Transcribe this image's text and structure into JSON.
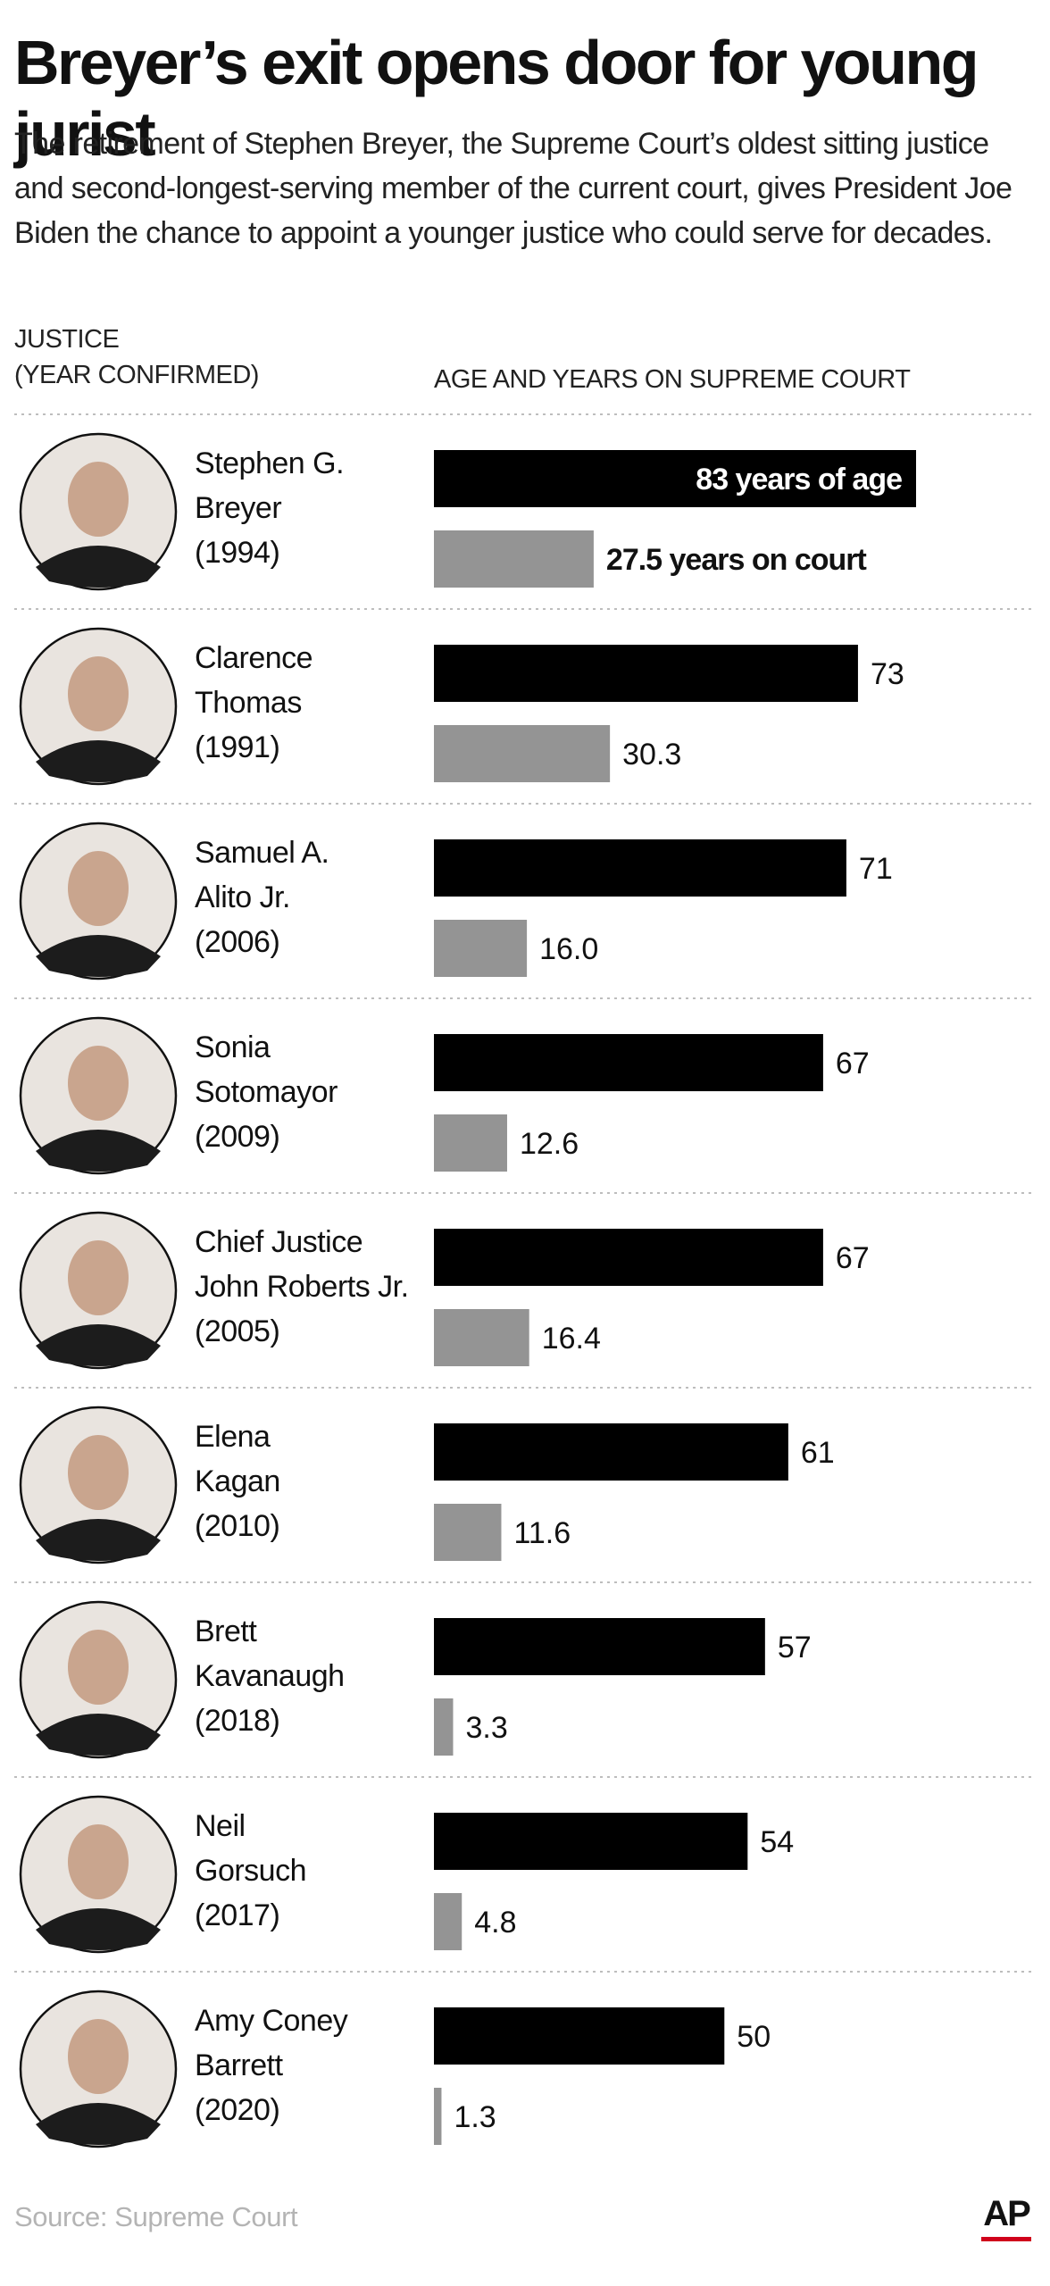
{
  "title": "Breyer’s exit opens door for young jurist",
  "subtitle": "The retirement of Stephen Breyer, the Supreme Court’s oldest sitting justice and second-longest-serving member of the current court, gives President Joe Biden the chance to appoint a younger justice who could serve for decades.",
  "header": {
    "justice_line1": "JUSTICE",
    "justice_line2": "(YEAR CONFIRMED)",
    "age_years": "AGE AND YEARS ON SUPREME COURT"
  },
  "source": "Source: Supreme Court",
  "logo_text": "AP",
  "colors": {
    "age_bar": "#000000",
    "court_bar": "#949494",
    "divider": "#bdbdbd",
    "logo_accent": "#d0021b"
  },
  "icons": [
    "justice-portrait"
  ],
  "chart_data": {
    "type": "bar",
    "orientation": "horizontal",
    "categories": [
      "Stephen G. Breyer (1994)",
      "Clarence Thomas (1991)",
      "Samuel A. Alito Jr. (2006)",
      "Sonia Sotomayor (2009)",
      "Chief Justice John Roberts Jr. (2005)",
      "Elena Kagan (2010)",
      "Brett Kavanaugh (2018)",
      "Neil Gorsuch (2017)",
      "Amy Coney Barrett (2020)"
    ],
    "series": [
      {
        "values": [
          83,
          73,
          71,
          67,
          67,
          61,
          57,
          54,
          50
        ]
      },
      {
        "values": [
          27.5,
          30.3,
          16.0,
          12.6,
          16.4,
          11.6,
          3.3,
          4.8,
          1.3
        ]
      }
    ],
    "xlim": [
      0,
      83
    ],
    "grid": false,
    "justices": [
      {
        "name_lines": [
          "Stephen G.",
          "Breyer",
          "(1994)"
        ],
        "age": 83,
        "years": 27.5,
        "age_label": "83 years of age",
        "years_label": "27.5 years on court"
      },
      {
        "name_lines": [
          "Clarence",
          "Thomas",
          "(1991)"
        ],
        "age": 73,
        "years": 30.3,
        "age_label": "73",
        "years_label": "30.3"
      },
      {
        "name_lines": [
          "Samuel A.",
          "Alito Jr.",
          "(2006)"
        ],
        "age": 71,
        "years": 16.0,
        "age_label": "71",
        "years_label": "16.0"
      },
      {
        "name_lines": [
          "Sonia",
          "Sotomayor",
          "(2009)"
        ],
        "age": 67,
        "years": 12.6,
        "age_label": "67",
        "years_label": "12.6"
      },
      {
        "name_lines": [
          "Chief Justice",
          "John Roberts Jr.",
          "(2005)"
        ],
        "age": 67,
        "years": 16.4,
        "age_label": "67",
        "years_label": "16.4"
      },
      {
        "name_lines": [
          "Elena",
          "Kagan",
          "(2010)"
        ],
        "age": 61,
        "years": 11.6,
        "age_label": "61",
        "years_label": "11.6"
      },
      {
        "name_lines": [
          "Brett",
          "Kavanaugh",
          "(2018)"
        ],
        "age": 57,
        "years": 3.3,
        "age_label": "57",
        "years_label": "3.3"
      },
      {
        "name_lines": [
          "Neil",
          "Gorsuch",
          "(2017)"
        ],
        "age": 54,
        "years": 4.8,
        "age_label": "54",
        "years_label": "4.8"
      },
      {
        "name_lines": [
          "Amy Coney",
          "Barrett",
          "(2020)"
        ],
        "age": 50,
        "years": 1.3,
        "age_label": "50",
        "years_label": "1.3"
      }
    ]
  }
}
